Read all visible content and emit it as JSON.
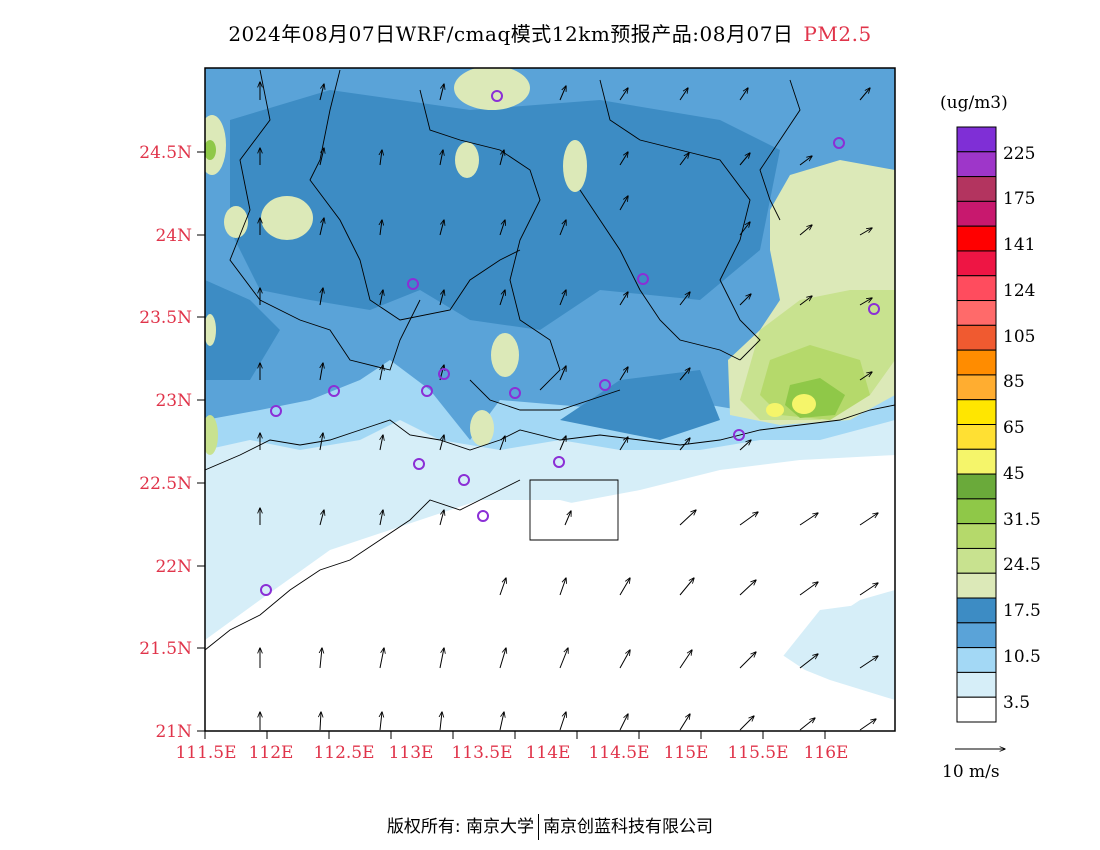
{
  "header": {
    "title": "2024年08月07日WRF/cmaq模式12km预报产品:08月07日",
    "pollutant": "PM2.5"
  },
  "map": {
    "lat_labels": [
      "24.5N",
      "24N",
      "23.5N",
      "23N",
      "22.5N",
      "22N",
      "21.5N",
      "21N"
    ],
    "lon_labels": [
      "111.5E",
      "112E",
      "112.5E",
      "113E",
      "113.5E",
      "114E",
      "114.5E",
      "115E",
      "115.5E",
      "116E"
    ],
    "label_color": "#e0344a"
  },
  "legend": {
    "unit": "(ug/m3)",
    "levels": [
      "225",
      "175",
      "141",
      "124",
      "105",
      "85",
      "65",
      "45",
      "31.5",
      "24.5",
      "17.5",
      "10.5",
      "3.5"
    ],
    "colors": [
      "#7f2fd6",
      "#9e36c9",
      "#b3345f",
      "#c8186e",
      "#ff0000",
      "#ee1544",
      "#ff4c5e",
      "#ff6a6a",
      "#f05a30",
      "#ff8c00",
      "#ffad30",
      "#ffe600",
      "#ffe033",
      "#f5f56a",
      "#6aaa3a",
      "#8fc848",
      "#b5d96b",
      "#c8e28f",
      "#dce9b8",
      "#3d8cc4",
      "#5aa3d8",
      "#a3d8f5",
      "#d6eef8",
      "#ffffff"
    ]
  },
  "wind_scale": {
    "label": "10 m/s"
  },
  "footer": {
    "copyright": "版权所有: 南京大学",
    "company": "南京创蓝科技有限公司"
  }
}
